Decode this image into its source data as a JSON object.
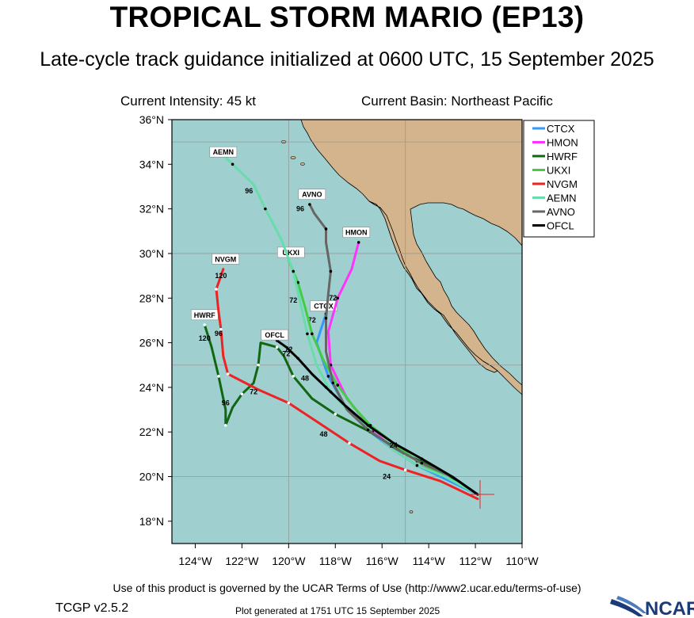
{
  "header": {
    "title": "TROPICAL STORM MARIO (EP13)",
    "subtitle": "Late-cycle track guidance initialized at 0600 UTC, 15 September 2025",
    "intensity": "Current Intensity: 45 kt",
    "basin": "Current Basin: Northeast Pacific"
  },
  "map": {
    "lon_range": [
      -125,
      -110
    ],
    "lat_range": [
      17,
      36
    ],
    "ocean_color": "#9fcfcf",
    "land_color": "#d4b48c",
    "grid_color": "#999999",
    "lat_labels": [
      "18°N",
      "20°N",
      "22°N",
      "24°N",
      "26°N",
      "28°N",
      "30°N",
      "32°N",
      "34°N",
      "36°N"
    ],
    "lon_labels": [
      "124°W",
      "122°W",
      "120°W",
      "118°W",
      "116°W",
      "114°W",
      "112°W",
      "110°W"
    ],
    "current_position": {
      "lon": -111.8,
      "lat": 19.2
    }
  },
  "tracks": [
    {
      "name": "CTCX",
      "color": "#3399ff",
      "points": [
        [
          -111.9,
          19.2
        ],
        [
          -113.5,
          20.0
        ],
        [
          -114.5,
          20.5
        ],
        [
          -115.5,
          21.2
        ],
        [
          -116.5,
          22.0
        ],
        [
          -117.5,
          23.0
        ],
        [
          -118.3,
          24.5
        ],
        [
          -118.8,
          26.0
        ],
        [
          -118.4,
          27.3
        ]
      ],
      "hours": [
        {
          "label": "72",
          "lon": -119.0,
          "lat": 26.9
        }
      ],
      "tag_lon": -118.5,
      "tag_lat": 27.6
    },
    {
      "name": "HMON",
      "color": "#ff33ff",
      "points": [
        [
          -111.9,
          19.2
        ],
        [
          -113.0,
          20.0
        ],
        [
          -114.5,
          20.5
        ],
        [
          -115.5,
          21.2
        ],
        [
          -116.5,
          22.2
        ],
        [
          -117.5,
          23.5
        ],
        [
          -118.2,
          25.0
        ],
        [
          -118.3,
          26.5
        ],
        [
          -117.9,
          28.0
        ],
        [
          -117.3,
          29.3
        ],
        [
          -117.0,
          30.5
        ]
      ],
      "hours": [
        {
          "label": "72",
          "lon": -118.1,
          "lat": 27.9
        }
      ],
      "tag_lon": -117.1,
      "tag_lat": 30.9
    },
    {
      "name": "HWRF",
      "color": "#116611",
      "points": [
        [
          -111.9,
          19.2
        ],
        [
          -113.5,
          20.3
        ],
        [
          -115.0,
          21.0
        ],
        [
          -116.5,
          22.0
        ],
        [
          -118.0,
          22.8
        ],
        [
          -119.0,
          23.5
        ],
        [
          -119.8,
          24.5
        ],
        [
          -120.2,
          25.4
        ],
        [
          -120.5,
          25.8
        ],
        [
          -121.2,
          26.0
        ],
        [
          -121.3,
          25.0
        ],
        [
          -121.5,
          24.2
        ],
        [
          -122.0,
          23.7
        ],
        [
          -122.4,
          23.1
        ],
        [
          -122.7,
          22.3
        ],
        [
          -122.7,
          23.0
        ],
        [
          -123.0,
          24.5
        ],
        [
          -123.3,
          25.8
        ],
        [
          -123.6,
          26.8
        ]
      ],
      "hours": [
        {
          "label": "72",
          "lon": -120.1,
          "lat": 25.4
        },
        {
          "label": "96",
          "lon": -122.7,
          "lat": 23.2
        },
        {
          "label": "120",
          "lon": -123.6,
          "lat": 26.1
        }
      ],
      "tag_lon": -123.6,
      "tag_lat": 27.2
    },
    {
      "name": "UKXI",
      "color": "#44cc44",
      "points": [
        [
          -111.9,
          19.2
        ],
        [
          -113.3,
          20.0
        ],
        [
          -114.5,
          20.7
        ],
        [
          -115.5,
          21.5
        ],
        [
          -116.5,
          22.3
        ],
        [
          -117.2,
          23.1
        ],
        [
          -117.9,
          24.1
        ],
        [
          -118.5,
          25.2
        ],
        [
          -119.0,
          26.4
        ],
        [
          -119.3,
          27.6
        ],
        [
          -119.6,
          28.7
        ],
        [
          -120.0,
          29.7
        ]
      ],
      "hours": [
        {
          "label": "72",
          "lon": -119.8,
          "lat": 27.8
        }
      ],
      "tag_lon": -119.9,
      "tag_lat": 30.0
    },
    {
      "name": "NVGM",
      "color": "#ee2222",
      "points": [
        [
          -111.9,
          19.0
        ],
        [
          -113.5,
          19.8
        ],
        [
          -115.0,
          20.3
        ],
        [
          -116.1,
          20.7
        ],
        [
          -117.4,
          21.5
        ],
        [
          -118.7,
          22.4
        ],
        [
          -120.0,
          23.3
        ],
        [
          -121.3,
          23.9
        ],
        [
          -122.6,
          24.6
        ],
        [
          -122.8,
          25.4
        ],
        [
          -122.9,
          26.6
        ],
        [
          -123.0,
          27.4
        ],
        [
          -123.1,
          28.4
        ],
        [
          -122.8,
          29.3
        ]
      ],
      "hours": [
        {
          "label": "24",
          "lon": -115.8,
          "lat": 19.9
        },
        {
          "label": "48",
          "lon": -118.5,
          "lat": 21.8
        },
        {
          "label": "72",
          "lon": -121.5,
          "lat": 23.7
        },
        {
          "label": "96",
          "lon": -123.0,
          "lat": 26.3
        },
        {
          "label": "120",
          "lon": -122.9,
          "lat": 28.9
        }
      ],
      "tag_lon": -122.7,
      "tag_lat": 29.7
    },
    {
      "name": "AEMN",
      "color": "#66ddaa",
      "points": [
        [
          -111.9,
          19.2
        ],
        [
          -113.3,
          20.0
        ],
        [
          -114.5,
          20.5
        ],
        [
          -115.5,
          21.2
        ],
        [
          -116.4,
          22.0
        ],
        [
          -117.3,
          22.8
        ],
        [
          -118.2,
          23.8
        ],
        [
          -118.8,
          25.0
        ],
        [
          -119.2,
          26.4
        ],
        [
          -119.5,
          27.8
        ],
        [
          -119.8,
          29.2
        ],
        [
          -120.3,
          30.6
        ],
        [
          -121.0,
          32.0
        ],
        [
          -121.5,
          33.1
        ],
        [
          -122.4,
          34.0
        ],
        [
          -122.8,
          34.4
        ]
      ],
      "hours": [
        {
          "label": "96",
          "lon": -121.7,
          "lat": 32.7
        }
      ],
      "tag_lon": -122.8,
      "tag_lat": 34.5
    },
    {
      "name": "AVNO",
      "color": "#666666",
      "points": [
        [
          -111.9,
          19.2
        ],
        [
          -113.0,
          20.0
        ],
        [
          -114.3,
          20.6
        ],
        [
          -115.5,
          21.3
        ],
        [
          -116.6,
          22.1
        ],
        [
          -117.5,
          23.0
        ],
        [
          -118.1,
          24.2
        ],
        [
          -118.4,
          25.6
        ],
        [
          -118.4,
          27.1
        ],
        [
          -118.3,
          28.2
        ],
        [
          -118.2,
          29.2
        ],
        [
          -118.4,
          30.5
        ],
        [
          -118.4,
          31.1
        ],
        [
          -118.9,
          31.8
        ],
        [
          -119.1,
          32.2
        ]
      ],
      "hours": [
        {
          "label": "96",
          "lon": -119.5,
          "lat": 31.9
        }
      ],
      "tag_lon": -119.0,
      "tag_lat": 32.6
    },
    {
      "name": "OFCL",
      "color": "#000000",
      "points": [
        [
          -111.9,
          19.2
        ],
        [
          -113.0,
          20.0
        ],
        [
          -114.3,
          20.8
        ],
        [
          -115.5,
          21.5
        ],
        [
          -116.6,
          22.3
        ],
        [
          -117.6,
          23.2
        ],
        [
          -118.4,
          24.0
        ],
        [
          -119.0,
          24.6
        ],
        [
          -119.6,
          25.3
        ],
        [
          -120.1,
          25.8
        ],
        [
          -120.5,
          26.1
        ]
      ],
      "hours": [
        {
          "label": "72",
          "lon": -120.0,
          "lat": 25.6
        },
        {
          "label": "48",
          "lon": -119.3,
          "lat": 24.3
        },
        {
          "label": "24",
          "lon": -115.5,
          "lat": 21.3
        }
      ],
      "tag_lon": -120.6,
      "tag_lat": 26.3
    }
  ],
  "legend": [
    "CTCX",
    "HMON",
    "HWRF",
    "UKXI",
    "NVGM",
    "AEMN",
    "AVNO",
    "OFCL"
  ],
  "footer": {
    "terms": "Use of this product is governed by the UCAR Terms of Use (http://www2.ucar.edu/terms-of-use)",
    "version": "TCGP v2.5.2",
    "generated": "Plot generated at 1751 UTC   15 September 2025",
    "logo_text": "NCAR"
  }
}
